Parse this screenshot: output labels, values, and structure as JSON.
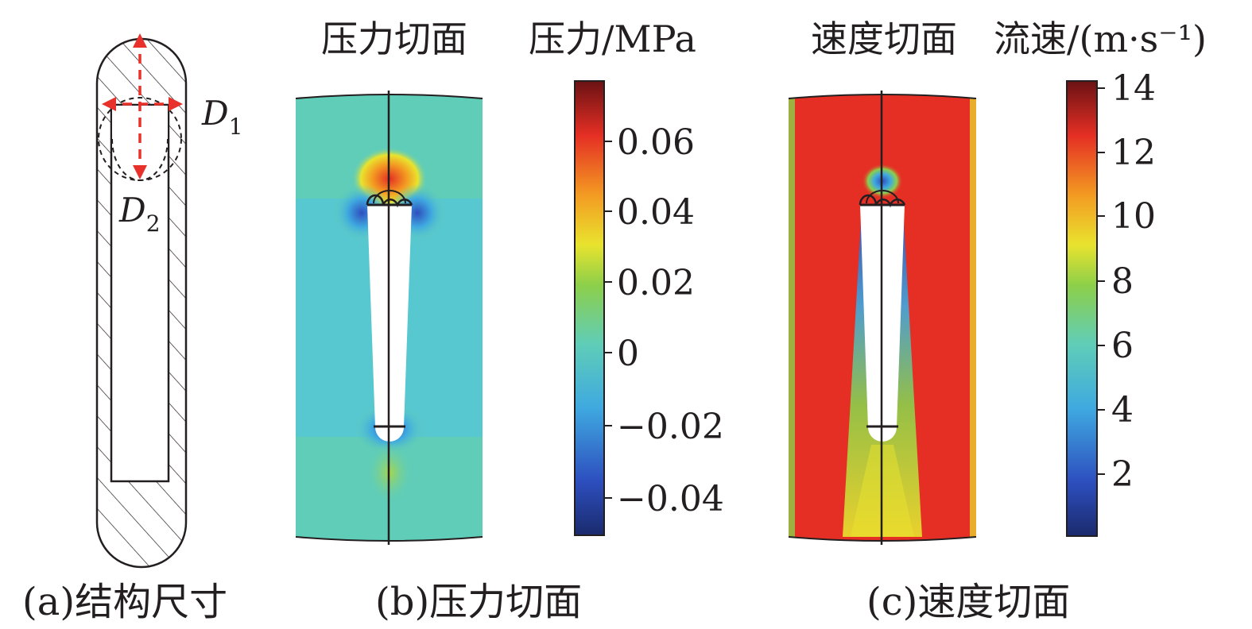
{
  "panel_a": {
    "d1_label": "D",
    "d1_sub": "1",
    "d2_label": "D",
    "d2_sub": "2",
    "caption": "(a)结构尺寸"
  },
  "panel_b": {
    "title": "压力切面",
    "colorbar_title": "压力/MPa",
    "colorbar_ticks": [
      "0.06",
      "0.04",
      "0.02",
      "0",
      "−0.02",
      "−0.04"
    ],
    "caption": "(b)压力切面"
  },
  "panel_c": {
    "title": "速度切面",
    "colorbar_title": "流速/(m·s⁻¹)",
    "colorbar_ticks": [
      "14",
      "12",
      "10",
      "8",
      "6",
      "4",
      "2"
    ],
    "caption": "(c)速度切面"
  },
  "colors": {
    "accent_arrow": "#e8312a",
    "pressure_field": "#5fcdb8",
    "velocity_field": "#e52f24"
  }
}
